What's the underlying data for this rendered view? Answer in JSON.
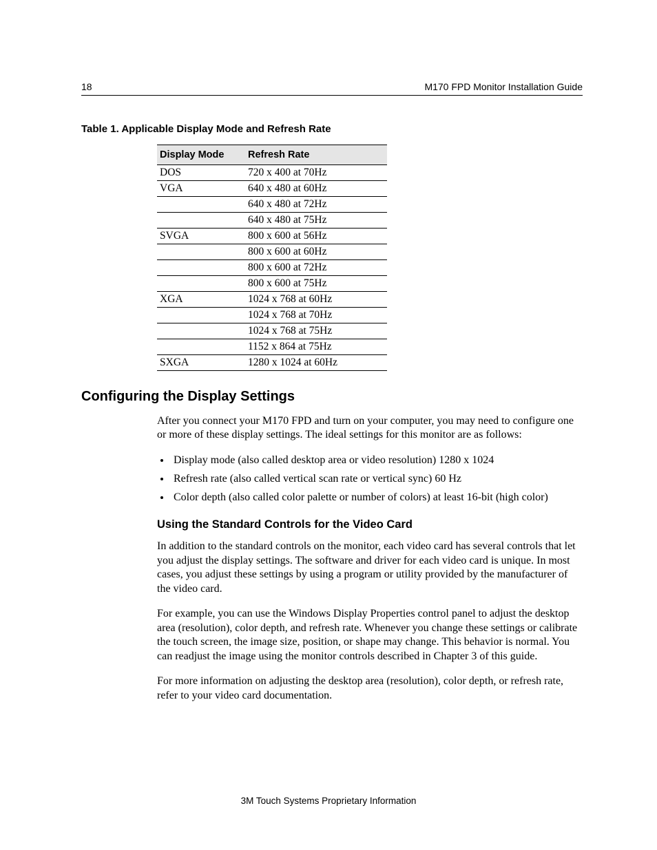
{
  "header": {
    "page_number": "18",
    "doc_title": "M170 FPD Monitor Installation Guide"
  },
  "table": {
    "caption": "Table 1.  Applicable Display Mode and Refresh Rate",
    "columns": [
      "Display Mode",
      "Refresh Rate"
    ],
    "rows": [
      [
        "DOS",
        "720 x 400 at 70Hz"
      ],
      [
        "VGA",
        "640 x 480 at 60Hz"
      ],
      [
        "",
        "640 x 480 at 72Hz"
      ],
      [
        "",
        "640 x 480 at 75Hz"
      ],
      [
        "SVGA",
        "800 x 600 at 56Hz"
      ],
      [
        "",
        "800 x 600 at 60Hz"
      ],
      [
        "",
        "800 x 600 at 72Hz"
      ],
      [
        "",
        "800 x 600 at 75Hz"
      ],
      [
        "XGA",
        "1024 x 768 at 60Hz"
      ],
      [
        "",
        "1024 x 768 at 70Hz"
      ],
      [
        "",
        "1024 x 768 at 75Hz"
      ],
      [
        "",
        "1152 x 864 at 75Hz"
      ],
      [
        "SXGA",
        "1280 x 1024 at 60Hz"
      ]
    ],
    "header_bg": "#e5e5e5",
    "border_color": "#000000"
  },
  "section": {
    "heading": "Configuring the Display Settings",
    "intro": "After you connect your M170 FPD and turn on your computer, you may need to configure one or more of these display settings. The ideal settings for this monitor are as follows:",
    "bullets": [
      "Display mode (also called desktop area or video resolution) 1280 x 1024",
      "Refresh rate (also called vertical scan rate or vertical sync) 60 Hz",
      "Color depth (also called color palette or number of colors) at least 16-bit (high color)"
    ],
    "sub": {
      "heading": "Using the Standard Controls for the Video Card",
      "p1": "In addition to the standard controls on the monitor, each video card has several controls that let you adjust the display settings.  The software and driver for each video card is unique.  In most cases, you adjust these settings by using a program or utility provided by the manufacturer of the video card.",
      "p2": "For example, you can use the Windows Display Properties control panel to adjust the desktop area (resolution), color depth, and refresh rate.  Whenever you change these settings or calibrate the touch screen, the image size, position, or shape may change.  This behavior is normal.  You can readjust the image using the monitor controls described in Chapter 3 of this guide.",
      "p3": "For more information on adjusting the desktop area (resolution), color depth, or refresh rate, refer to your video card documentation."
    }
  },
  "footer": "3M Touch Systems Proprietary Information"
}
